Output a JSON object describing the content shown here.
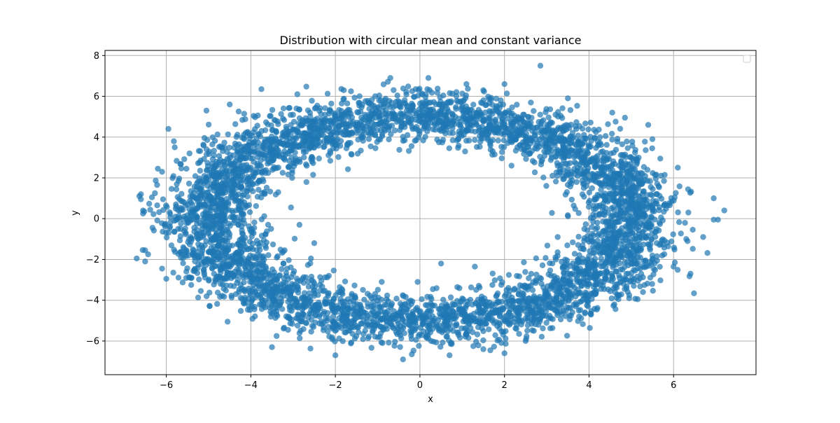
{
  "chart_data": {
    "type": "scatter",
    "title": "Distribution with circular mean and constant variance",
    "xlabel": "x",
    "ylabel": "y",
    "xlim": [
      -7.45,
      7.95
    ],
    "ylim": [
      -7.65,
      8.25
    ],
    "xticks": [
      -6,
      -4,
      -2,
      0,
      2,
      4,
      6
    ],
    "yticks": [
      -6,
      -4,
      -2,
      0,
      2,
      4,
      6,
      8
    ],
    "grid": true,
    "legend_position": "top-right",
    "legend_entries": [],
    "series": [
      {
        "marker_color": "#1f77b4",
        "marker_alpha": 0.7,
        "points": [
          [
            2.85,
            7.5
          ],
          [
            0.2,
            6.9
          ],
          [
            -0.7,
            6.9
          ],
          [
            1.1,
            6.6
          ],
          [
            2.0,
            6.6
          ],
          [
            -3.75,
            6.35
          ],
          [
            -1.8,
            6.3
          ],
          [
            -0.1,
            6.35
          ],
          [
            1.5,
            6.3
          ],
          [
            3.5,
            5.9
          ],
          [
            -5.05,
            5.3
          ],
          [
            -2.9,
            6.1
          ],
          [
            -4.5,
            5.6
          ],
          [
            4.55,
            5.2
          ],
          [
            4.85,
            4.95
          ],
          [
            5.4,
            4.6
          ],
          [
            -5.95,
            4.4
          ],
          [
            5.5,
            3.9
          ],
          [
            -5.8,
            3.5
          ],
          [
            6.1,
            2.5
          ],
          [
            -6.2,
            2.45
          ],
          [
            -3.05,
            0.55
          ],
          [
            -2.85,
            -0.3
          ],
          [
            -2.5,
            -1.2
          ],
          [
            -3.2,
            -1.55
          ],
          [
            0.5,
            -2.2
          ],
          [
            1.3,
            -2.35
          ],
          [
            -6.6,
            1.2
          ],
          [
            -6.6,
            0.95
          ],
          [
            -6.55,
            0.4
          ],
          [
            -6.55,
            0.25
          ],
          [
            -6.5,
            -1.55
          ],
          [
            -6.7,
            -1.95
          ],
          [
            -6.5,
            -2.1
          ],
          [
            -6.0,
            -2.95
          ],
          [
            -6.1,
            -2.45
          ],
          [
            6.95,
            1.0
          ],
          [
            7.2,
            0.4
          ],
          [
            6.95,
            -0.05
          ],
          [
            7.05,
            -0.05
          ],
          [
            6.7,
            -0.9
          ],
          [
            6.35,
            0.3
          ],
          [
            6.3,
            -1.0
          ],
          [
            6.4,
            -2.7
          ],
          [
            6.0,
            -2.35
          ],
          [
            -3.5,
            -6.3
          ],
          [
            -2.0,
            -6.7
          ],
          [
            -0.4,
            -6.9
          ],
          [
            0.7,
            -6.7
          ],
          [
            1.5,
            -6.4
          ],
          [
            2.0,
            -6.6
          ],
          [
            2.5,
            -6.0
          ],
          [
            -4.55,
            -5.05
          ],
          [
            4.6,
            -4.2
          ],
          [
            5.15,
            -3.95
          ],
          [
            4.95,
            -3.9
          ]
        ]
      }
    ]
  }
}
